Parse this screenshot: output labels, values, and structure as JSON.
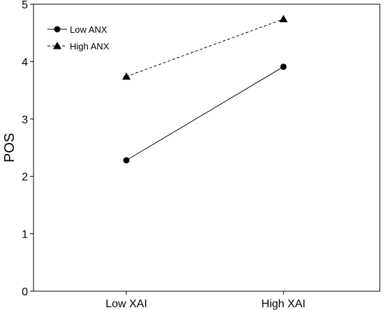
{
  "chart_data": {
    "type": "line",
    "categories": [
      "Low XAI",
      "High XAI"
    ],
    "ylabel": "POS",
    "xlabel": "",
    "ylim": [
      0,
      5
    ],
    "yticks": [
      0,
      1,
      2,
      3,
      4,
      5
    ],
    "legend_placement": "top-left",
    "grid": false,
    "series": [
      {
        "name": "Low ANX",
        "values": [
          2.28,
          3.91
        ],
        "marker": "circle",
        "line": "solid",
        "color": "#000000"
      },
      {
        "name": "High ANX",
        "values": [
          3.74,
          4.74
        ],
        "marker": "triangle",
        "line": "dashed",
        "color": "#000000"
      }
    ]
  }
}
